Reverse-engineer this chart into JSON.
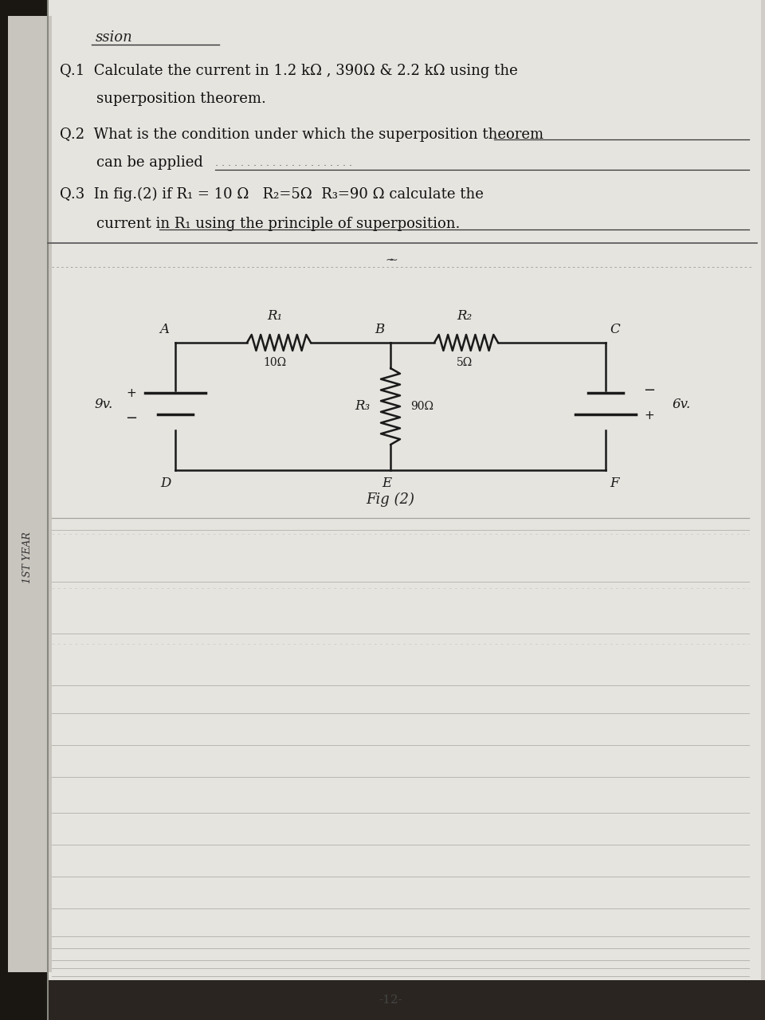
{
  "bg_color": "#2a2520",
  "paper_color": "#e8e6e1",
  "sidebar_color": "#c8c5be",
  "sidebar_text": "1ST YEAR",
  "title": "ssion",
  "q1_line1": "Q.1  Calculate the current in 1.2 kΩ , 390Ω & 2.2 kΩ using the",
  "q1_line2": "        superposition theorem.",
  "q2_line1": "Q.2  What is the condition under which the superposition theorem",
  "q2_line2": "        can be applied",
  "q3_line1": "Q.3  In fig.(2) if R₁ = 10 Ω   R₂=5Ω  R₃=90 Ω calculate the",
  "q3_line2": "        current in R₁ using the principle of superposition.",
  "fig_label": "Fig (2)",
  "node_A": "A",
  "node_B": "B",
  "node_C": "C",
  "node_D": "D",
  "node_E": "E",
  "node_F": "F",
  "R1_label": "R₁",
  "R2_label": "R₂",
  "R3_label": "R₃",
  "R1_val": "10Ω",
  "R2_val": "5Ω",
  "R3_val": "90Ω",
  "V1_label": "9v.",
  "V2_label": "6v.",
  "page_num": "-12-"
}
